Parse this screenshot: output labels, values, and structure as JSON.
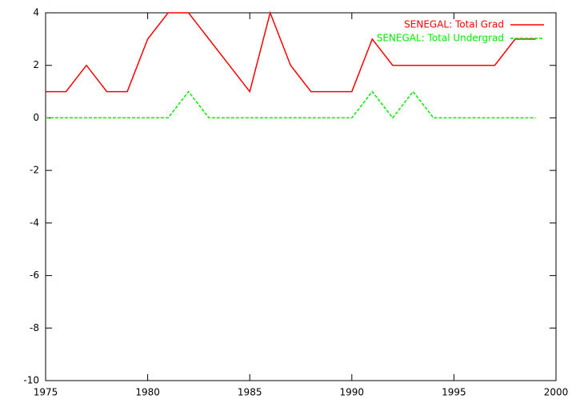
{
  "chart_data": {
    "type": "line",
    "x": [
      1975,
      1976,
      1977,
      1978,
      1979,
      1980,
      1981,
      1982,
      1983,
      1984,
      1985,
      1986,
      1987,
      1988,
      1989,
      1990,
      1991,
      1992,
      1993,
      1994,
      1995,
      1996,
      1997,
      1998,
      1999
    ],
    "series": [
      {
        "name": "SENEGAL: Total Grad",
        "color": "#ff0000",
        "dashed": false,
        "values": [
          1,
          1,
          2,
          1,
          1,
          3,
          4,
          4,
          3,
          2,
          1,
          4,
          2,
          1,
          1,
          1,
          3,
          2,
          2,
          2,
          2,
          2,
          2,
          3,
          3
        ]
      },
      {
        "name": "SENEGAL: Total Undergrad",
        "color": "#00ee00",
        "dashed": true,
        "values": [
          0,
          0,
          0,
          0,
          0,
          0,
          0,
          1,
          0,
          0,
          0,
          0,
          0,
          0,
          0,
          0,
          1,
          0,
          1,
          0,
          0,
          0,
          0,
          0,
          0
        ]
      }
    ],
    "xlim": [
      1975,
      2000
    ],
    "xticks": [
      1975,
      1980,
      1985,
      1990,
      1995,
      2000
    ],
    "ylim": [
      -10,
      4
    ],
    "yticks": [
      -10,
      -8,
      -6,
      -4,
      -2,
      0,
      2,
      4
    ],
    "grid": false,
    "legend": "top-right"
  }
}
